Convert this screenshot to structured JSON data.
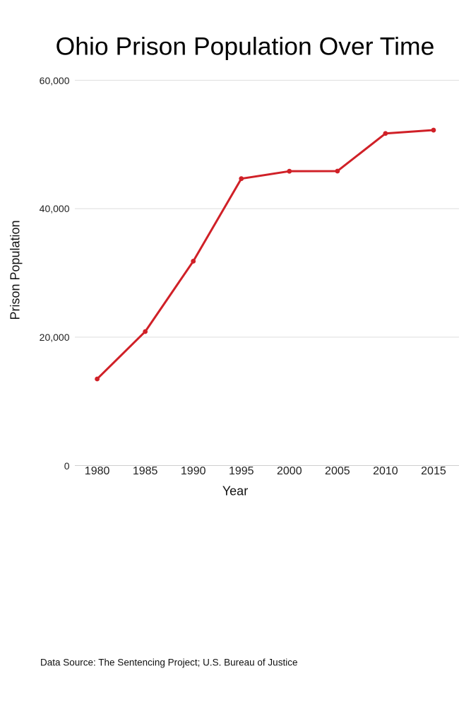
{
  "page": {
    "background_color": "#ffffff"
  },
  "footer": {
    "source_note": "Data Source: The Sentencing Project; U.S. Bureau of Justice"
  },
  "chart_data": {
    "type": "line",
    "title": "Ohio Prison Population Over Time",
    "xlabel": "Year",
    "ylabel": "Prison Population",
    "x": [
      1980,
      1985,
      1990,
      1995,
      2000,
      2005,
      2010,
      2015
    ],
    "series": [
      {
        "name": "Prison Population",
        "values": [
          13489,
          20864,
          31822,
          44677,
          45833,
          45854,
          51712,
          52233
        ]
      }
    ],
    "xticks": [
      1980,
      1985,
      1990,
      1995,
      2000,
      2005,
      2010,
      2015
    ],
    "xtick_labels": [
      "1980",
      "1985",
      "1990",
      "1995",
      "2000",
      "2005",
      "2010",
      "2015"
    ],
    "yticks": [
      0,
      20000,
      40000,
      60000
    ],
    "ytick_labels": [
      "0",
      "20,000",
      "40,000",
      "60,000"
    ],
    "ylim": [
      0,
      60000
    ],
    "xlim": [
      1980,
      2015
    ],
    "grid": "horizontal",
    "legend": "none",
    "marker": "circle",
    "line_color": "#d02027",
    "marker_color": "#d02027",
    "gridline_color": "#dedede",
    "axis_line_color": "#cfcfcf"
  }
}
